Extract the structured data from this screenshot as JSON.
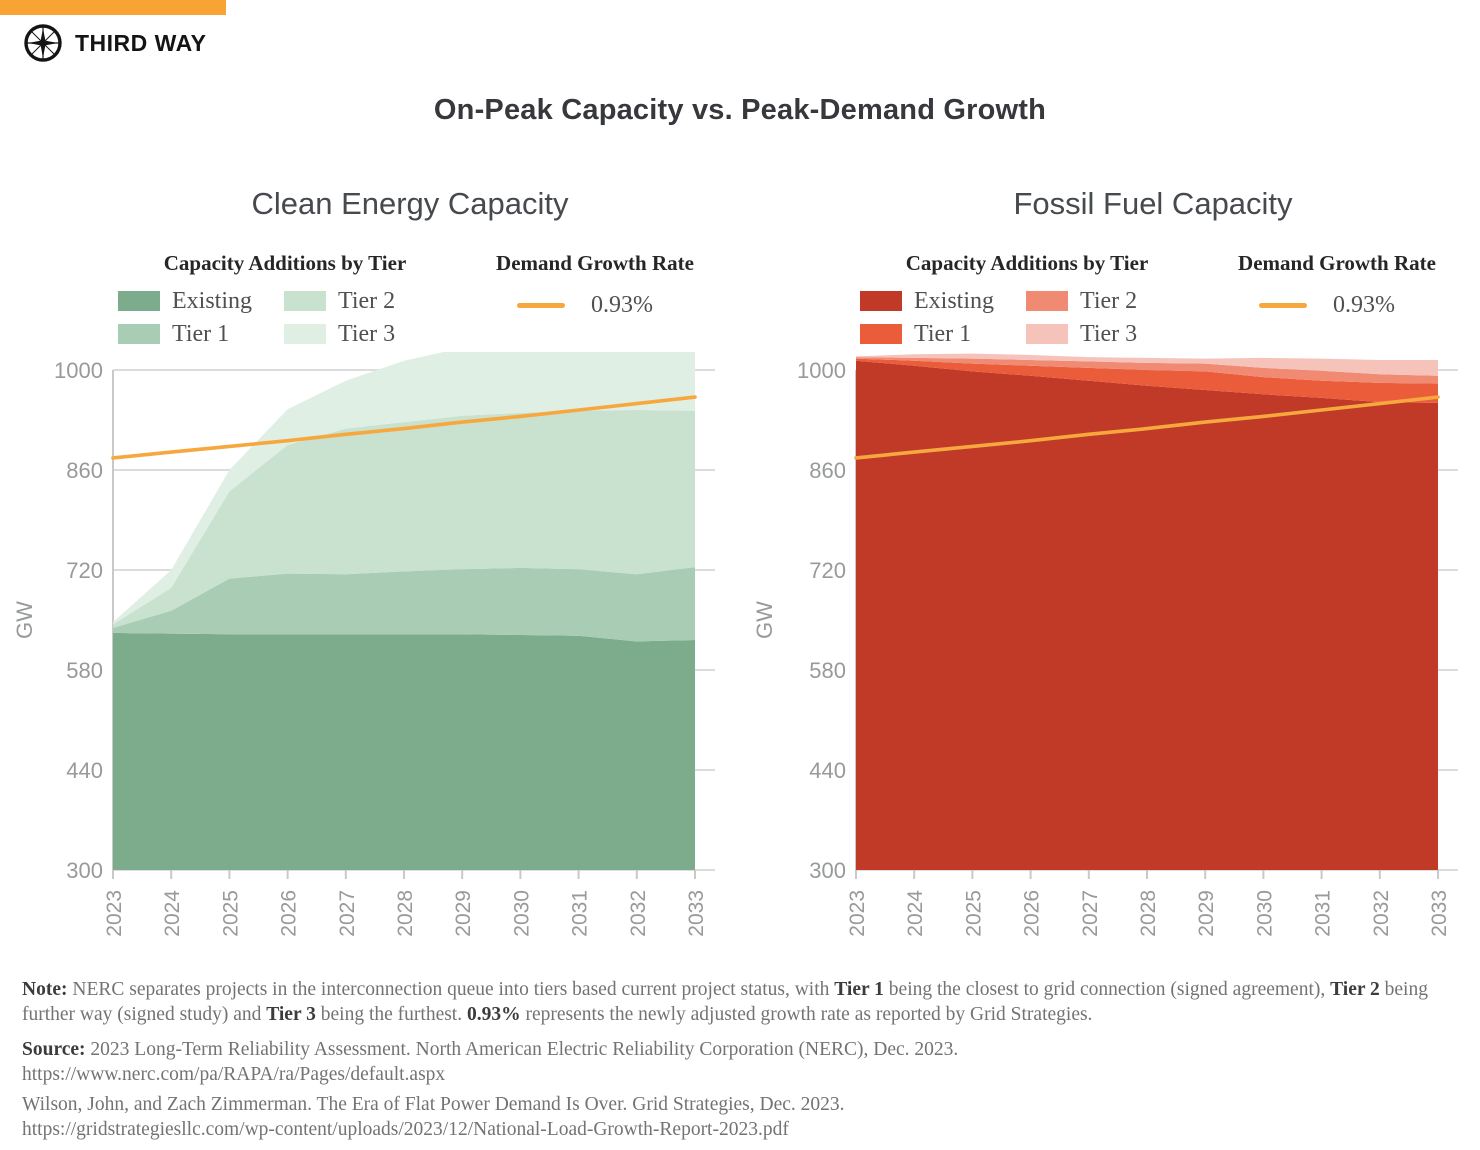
{
  "brand": {
    "name": "THIRD WAY",
    "logo_icon": "compass-star-icon",
    "bar_color": "#F7A434"
  },
  "title": "On-Peak Capacity vs. Peak-Demand Growth",
  "charts_shared": {
    "ylabel": "GW",
    "yticks": [
      300,
      440,
      580,
      720,
      860,
      1000
    ],
    "ylim": [
      300,
      1000
    ],
    "years": [
      2023,
      2024,
      2025,
      2026,
      2027,
      2028,
      2029,
      2030,
      2031,
      2032,
      2033
    ],
    "grid_color": "#dcdcdc",
    "axis_color": "#c9c9c9",
    "tick_label_color": "#97999b"
  },
  "chart_data": [
    {
      "type": "area",
      "stacked": true,
      "title": "Clean Energy Capacity",
      "legend_additions_title": "Capacity Additions by Tier",
      "legend_demand_title": "Demand Growth Rate",
      "x": [
        2023,
        2024,
        2025,
        2026,
        2027,
        2028,
        2029,
        2030,
        2031,
        2032,
        2033
      ],
      "xlabel": "",
      "ylabel": "GW",
      "ylim": [
        300,
        1000
      ],
      "series": [
        {
          "name": "Existing",
          "color": "#7cac8b",
          "values": [
            332,
            331,
            330,
            330,
            330,
            330,
            330,
            329,
            328,
            320,
            322
          ]
        },
        {
          "name": "Tier 1",
          "color": "#a9ccb4",
          "values": [
            7,
            32,
            78,
            85,
            84,
            88,
            91,
            94,
            93,
            94,
            102
          ]
        },
        {
          "name": "Tier 2",
          "color": "#c9e1cf",
          "values": [
            5,
            32,
            122,
            180,
            204,
            209,
            215,
            217,
            222,
            230,
            219
          ]
        },
        {
          "name": "Tier 3",
          "color": "#e0efe4",
          "values": [
            3,
            25,
            30,
            50,
            67,
            86,
            95,
            108,
            110,
            106,
            114
          ]
        }
      ],
      "line": {
        "name": "0.93%",
        "color": "#F6A83E",
        "values": [
          877,
          885,
          893,
          901,
          910,
          918,
          927,
          935,
          944,
          953,
          962
        ]
      }
    },
    {
      "type": "area",
      "stacked": true,
      "title": "Fossil Fuel Capacity",
      "legend_additions_title": "Capacity Additions by Tier",
      "legend_demand_title": "Demand Growth Rate",
      "x": [
        2023,
        2024,
        2025,
        2026,
        2027,
        2028,
        2029,
        2030,
        2031,
        2032,
        2033
      ],
      "xlabel": "",
      "ylabel": "GW",
      "ylim": [
        300,
        1000
      ],
      "series": [
        {
          "name": "Existing",
          "color": "#c03a27",
          "values": [
            713,
            706,
            698,
            692,
            685,
            678,
            672,
            666,
            661,
            655,
            654
          ]
        },
        {
          "name": "Tier 1",
          "color": "#eb5c3a",
          "values": [
            3,
            7,
            11,
            14,
            18,
            22,
            26,
            24,
            24,
            27,
            27
          ]
        },
        {
          "name": "Tier 2",
          "color": "#f08a73",
          "values": [
            2,
            4,
            7,
            8,
            9,
            10,
            11,
            13,
            14,
            12,
            11
          ]
        },
        {
          "name": "Tier 3",
          "color": "#f5c3ba",
          "values": [
            1,
            5,
            7,
            7,
            6,
            7,
            7,
            14,
            17,
            20,
            22
          ]
        }
      ],
      "line": {
        "name": "0.93%",
        "color": "#F6A83E",
        "values": [
          877,
          885,
          893,
          901,
          910,
          918,
          927,
          935,
          944,
          953,
          962
        ]
      }
    }
  ],
  "note": {
    "segments": [
      {
        "text": "Note:",
        "bold": true
      },
      {
        "text": " NERC separates projects in the interconnection queue into tiers based current project status, with ",
        "bold": false
      },
      {
        "text": "Tier 1",
        "bold": true
      },
      {
        "text": " being the closest to grid connection (signed agreement), ",
        "bold": false
      },
      {
        "text": "Tier 2",
        "bold": true
      },
      {
        "text": " being further way (signed study) and ",
        "bold": false
      },
      {
        "text": "Tier 3",
        "bold": true
      },
      {
        "text": " being the furthest. ",
        "bold": false
      },
      {
        "text": "0.93%",
        "bold": true
      },
      {
        "text": " represents the newly adjusted growth rate as reported by Grid Strategies.",
        "bold": false
      }
    ]
  },
  "sources": {
    "s1": {
      "segments": [
        {
          "text": "Source:",
          "bold": true
        },
        {
          "text": " 2023 Long-Term Reliability Assessment. North American Electric Reliability Corporation (NERC), Dec. 2023.",
          "bold": false
        }
      ],
      "url": "https://www.nerc.com/pa/RAPA/ra/Pages/default.aspx"
    },
    "s2": {
      "line": "Wilson, John, and Zach Zimmerman. The Era of Flat Power Demand Is Over. Grid Strategies, Dec. 2023.",
      "url": "https://gridstrategiesllc.com/wp-content/uploads/2023/12/National-Load-Growth-Report-2023.pdf"
    }
  }
}
